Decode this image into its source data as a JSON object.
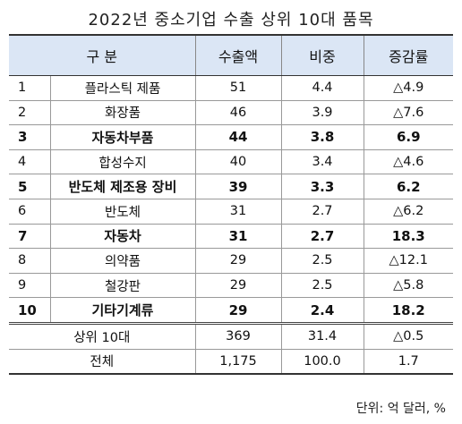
{
  "title": "2022년 중소기업 수출 상위 10대 품목",
  "headers": {
    "category": "구   분",
    "amount": "수출액",
    "share": "비중",
    "growth": "증감률"
  },
  "rows": [
    {
      "no": "1",
      "name": "플라스틱 제품",
      "amount": "51",
      "share": "4.4",
      "growth": "△4.9",
      "bold": false
    },
    {
      "no": "2",
      "name": "화장품",
      "amount": "46",
      "share": "3.9",
      "growth": "△7.6",
      "bold": false
    },
    {
      "no": "3",
      "name": "자동차부품",
      "amount": "44",
      "share": "3.8",
      "growth": "6.9",
      "bold": true
    },
    {
      "no": "4",
      "name": "합성수지",
      "amount": "40",
      "share": "3.4",
      "growth": "△4.6",
      "bold": false
    },
    {
      "no": "5",
      "name": "반도체 제조용 장비",
      "amount": "39",
      "share": "3.3",
      "growth": "6.2",
      "bold": true
    },
    {
      "no": "6",
      "name": "반도체",
      "amount": "31",
      "share": "2.7",
      "growth": "△6.2",
      "bold": false
    },
    {
      "no": "7",
      "name": "자동차",
      "amount": "31",
      "share": "2.7",
      "growth": "18.3",
      "bold": true
    },
    {
      "no": "8",
      "name": "의약품",
      "amount": "29",
      "share": "2.5",
      "growth": "△12.1",
      "bold": false
    },
    {
      "no": "9",
      "name": "철강판",
      "amount": "29",
      "share": "2.5",
      "growth": "△5.8",
      "bold": false
    },
    {
      "no": "10",
      "name": "기타기계류",
      "amount": "29",
      "share": "2.4",
      "growth": "18.2",
      "bold": true
    }
  ],
  "summary": [
    {
      "label": "상위 10대",
      "amount": "369",
      "share": "31.4",
      "growth": "△0.5"
    },
    {
      "label": "전체",
      "amount": "1,175",
      "share": "100.0",
      "growth": "1.7"
    }
  ],
  "unit": "단위: 억 달러, %"
}
